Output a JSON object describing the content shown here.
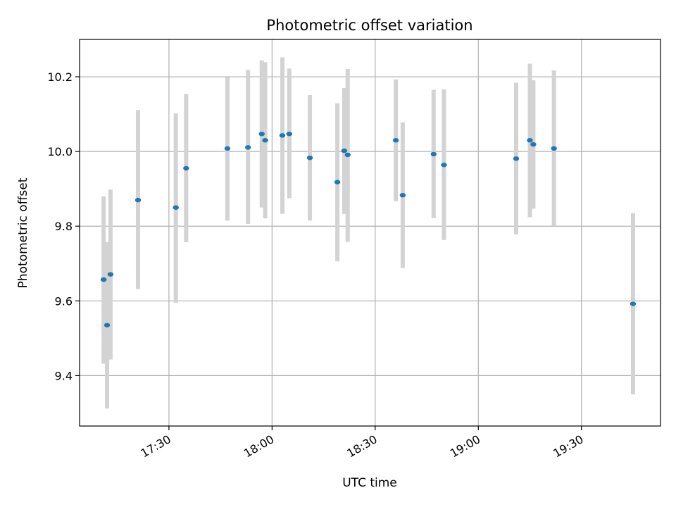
{
  "chart_data": {
    "type": "scatter",
    "title": "Photometric offset variation",
    "xlabel": "UTC time",
    "ylabel": "Photometric offset",
    "x_unit": "UTC hh:mm",
    "xlim": [
      "17:04",
      "19:53"
    ],
    "ylim": [
      9.265,
      10.3
    ],
    "xticks": [
      "17:30",
      "18:00",
      "18:30",
      "19:00",
      "19:30"
    ],
    "yticks": [
      9.4,
      9.6,
      9.8,
      10.0,
      10.2
    ],
    "grid": true,
    "colors": {
      "marker": "#1f77b4",
      "errorbar": "#d3d3d3",
      "grid": "#b0b0b0",
      "frame": "#000000"
    },
    "points": [
      {
        "x": "17:11",
        "y": 9.657,
        "ylow": 9.432,
        "yhigh": 9.88
      },
      {
        "x": "17:12",
        "y": 9.535,
        "ylow": 9.312,
        "yhigh": 9.757
      },
      {
        "x": "17:13",
        "y": 9.671,
        "ylow": 9.443,
        "yhigh": 9.898
      },
      {
        "x": "17:21",
        "y": 9.87,
        "ylow": 9.632,
        "yhigh": 10.111
      },
      {
        "x": "17:32",
        "y": 9.85,
        "ylow": 9.595,
        "yhigh": 10.102
      },
      {
        "x": "17:35",
        "y": 9.955,
        "ylow": 9.757,
        "yhigh": 10.154
      },
      {
        "x": "17:47",
        "y": 10.008,
        "ylow": 9.815,
        "yhigh": 10.199
      },
      {
        "x": "17:53",
        "y": 10.011,
        "ylow": 9.806,
        "yhigh": 10.218
      },
      {
        "x": "17:57",
        "y": 10.047,
        "ylow": 9.85,
        "yhigh": 10.244
      },
      {
        "x": "17:58",
        "y": 10.03,
        "ylow": 9.821,
        "yhigh": 10.239
      },
      {
        "x": "18:03",
        "y": 10.043,
        "ylow": 9.833,
        "yhigh": 10.252
      },
      {
        "x": "18:05",
        "y": 10.047,
        "ylow": 9.875,
        "yhigh": 10.222
      },
      {
        "x": "18:11",
        "y": 9.983,
        "ylow": 9.815,
        "yhigh": 10.151
      },
      {
        "x": "18:19",
        "y": 9.918,
        "ylow": 9.706,
        "yhigh": 10.129
      },
      {
        "x": "18:21",
        "y": 10.002,
        "ylow": 9.833,
        "yhigh": 10.17
      },
      {
        "x": "18:22",
        "y": 9.991,
        "ylow": 9.758,
        "yhigh": 10.221
      },
      {
        "x": "18:36",
        "y": 10.03,
        "ylow": 9.867,
        "yhigh": 10.193
      },
      {
        "x": "18:38",
        "y": 9.883,
        "ylow": 9.688,
        "yhigh": 10.078
      },
      {
        "x": "18:47",
        "y": 9.993,
        "ylow": 9.822,
        "yhigh": 10.165
      },
      {
        "x": "18:50",
        "y": 9.964,
        "ylow": 9.763,
        "yhigh": 10.166
      },
      {
        "x": "19:11",
        "y": 9.981,
        "ylow": 9.778,
        "yhigh": 10.184
      },
      {
        "x": "19:15",
        "y": 10.03,
        "ylow": 9.824,
        "yhigh": 10.235
      },
      {
        "x": "19:16",
        "y": 10.019,
        "ylow": 9.847,
        "yhigh": 10.191
      },
      {
        "x": "19:22",
        "y": 10.008,
        "ylow": 9.8,
        "yhigh": 10.217
      },
      {
        "x": "19:45",
        "y": 9.592,
        "ylow": 9.35,
        "yhigh": 9.835
      }
    ]
  }
}
